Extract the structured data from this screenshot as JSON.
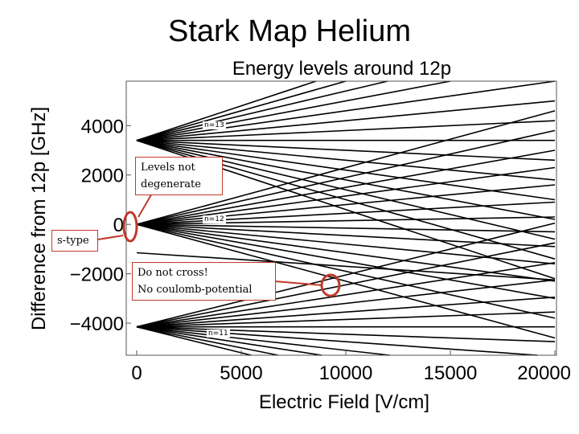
{
  "slide_title": "Stark Map Helium",
  "chart_data": {
    "type": "line",
    "title": "Energy levels around 12p",
    "xlabel": "Electric Field [V/cm]",
    "ylabel": "Difference from 12p [GHz]",
    "xlim": [
      0,
      20000
    ],
    "ylim": [
      -5300,
      5800
    ],
    "x_ticks": [
      "0",
      "5000",
      "10000",
      "15000",
      "20000"
    ],
    "x_tick_values": [
      0,
      5000,
      10000,
      15000,
      20000
    ],
    "y_ticks": [
      "4000",
      "2000",
      "0",
      "−2000",
      "−4000"
    ],
    "y_tick_values": [
      4000,
      2000,
      0,
      -2000,
      -4000
    ],
    "grid": false,
    "line_color": "#000000",
    "manifolds": [
      {
        "label": "n=13",
        "energy_at_zero_field": 3400,
        "slopes_ghz_per_kv_cm": [
          -280,
          -240,
          -200,
          -160,
          -120,
          -80,
          -40,
          0,
          40,
          80,
          120,
          160,
          200,
          240,
          280
        ]
      },
      {
        "label": "n=12",
        "energy_at_zero_field": 0,
        "slopes_ghz_per_kv_cm": [
          -230,
          -190,
          -150,
          -115,
          -80,
          -45,
          -15,
          15,
          45,
          80,
          115,
          150,
          190,
          230
        ]
      },
      {
        "label": "n=11",
        "energy_at_zero_field": -4150,
        "slopes_ghz_per_kv_cm": [
          -210,
          -170,
          -130,
          -95,
          -60,
          -30,
          0,
          30,
          60,
          95,
          130,
          170,
          210
        ]
      }
    ],
    "extra_levels": [
      {
        "label": "s-type",
        "energy_at_zero_field": -1150,
        "slope_ghz_per_kv_cm": -55
      }
    ]
  },
  "annotations": {
    "n13": "n=13",
    "n12": "n=12",
    "n11": "n=11",
    "levels_not_degenerate": "Levels not\ndegenerate",
    "s_type": "s-type",
    "do_not_cross": "Do not cross!\nNo coulomb-potential"
  },
  "colors": {
    "annotation": "#c0392b",
    "lines": "#000000",
    "axis": "#555555"
  }
}
